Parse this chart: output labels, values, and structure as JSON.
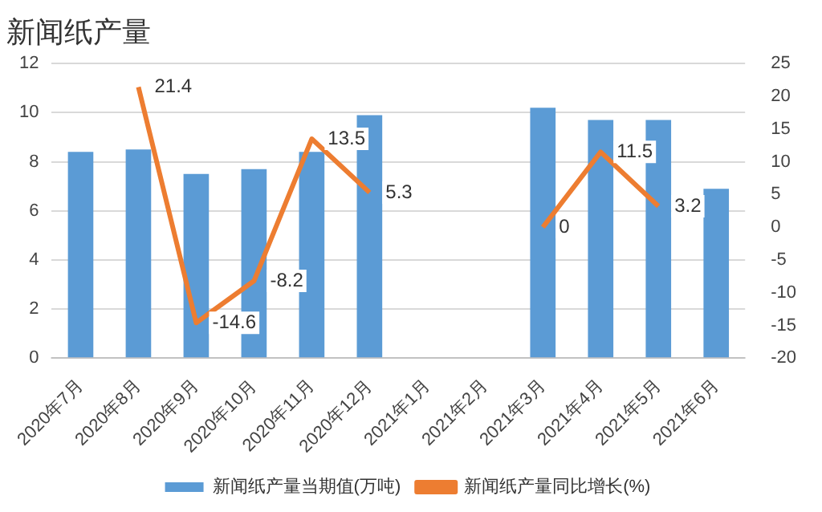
{
  "chart_data": {
    "type": "bar",
    "title": "新闻纸产量",
    "categories": [
      "2020年7月",
      "2020年8月",
      "2020年9月",
      "2020年10月",
      "2020年11月",
      "2020年12月",
      "2021年1月",
      "2021年2月",
      "2021年3月",
      "2021年4月",
      "2021年5月",
      "2021年6月"
    ],
    "series": [
      {
        "name": "新闻纸产量当期值(万吨)",
        "color": "#5b9bd5",
        "values": [
          8.4,
          8.5,
          7.5,
          7.7,
          8.4,
          9.9,
          null,
          null,
          10.2,
          9.7,
          9.7,
          6.9
        ]
      },
      {
        "name": "新闻纸产量同比增长(%)",
        "type": "line",
        "axis": "y2",
        "color": "#ed7d31",
        "values": [
          null,
          21.4,
          -14.6,
          -8.2,
          13.5,
          5.3,
          null,
          null,
          0,
          11.5,
          3.2,
          null
        ],
        "value_labels": [
          null,
          "21.4",
          "-14.6",
          "-8.2",
          "13.5",
          "5.3",
          null,
          null,
          "0",
          "11.5",
          "3.2",
          null
        ]
      }
    ],
    "ylim": [
      0,
      12
    ],
    "yticks": [
      0,
      2,
      4,
      6,
      8,
      10,
      12
    ],
    "y2lim": [
      -20,
      25
    ],
    "y2ticks": [
      -20,
      -15,
      -10,
      -5,
      0,
      5,
      10,
      15,
      20,
      25
    ],
    "grid": "y",
    "legend": "bottom",
    "marker": "none"
  }
}
